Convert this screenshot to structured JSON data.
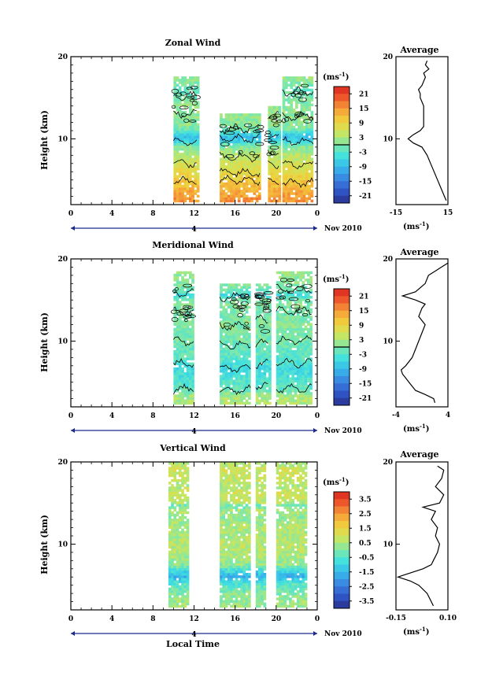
{
  "chart_data": [
    {
      "type": "heatmap",
      "title": "Zonal Wind",
      "ylabel": "Height (km)",
      "xlabel": "",
      "x_ticks": [
        "0",
        "4",
        "8",
        "12",
        "16",
        "20",
        "0"
      ],
      "xlim": [
        0,
        24
      ],
      "y_ticks": [
        "10",
        "20"
      ],
      "ylim": [
        2,
        20
      ],
      "date_label": "4",
      "date_tail": "Nov 2010",
      "data_segments": [
        [
          10,
          12.3
        ],
        [
          14.5,
          18.5
        ],
        [
          19.2,
          20.3
        ],
        [
          20.6,
          23.6
        ]
      ],
      "data_top_km": [
        17.5,
        13,
        14,
        17.5
      ],
      "profile": {
        "heights": [
          2.5,
          3,
          4,
          5,
          6,
          7,
          8,
          9,
          9.5,
          10,
          10.5,
          11,
          11.5,
          12,
          12.5,
          13,
          13.5,
          14,
          14.5,
          15,
          15.5,
          16,
          16.5,
          17,
          17.5,
          18,
          18.5,
          19,
          19.5
        ],
        "values": [
          14,
          13,
          11,
          9,
          7,
          5,
          3,
          0,
          -5,
          -8,
          -5,
          -1,
          1,
          1,
          1,
          1,
          1,
          1,
          0,
          -1,
          -1,
          -2,
          0,
          1,
          2,
          1,
          4,
          2,
          3
        ]
      },
      "colorbar": {
        "unit": "(ms",
        "unit_sup": "-1",
        "unit_close": ")",
        "ticks": [
          "21",
          "15",
          "9",
          "3",
          "-3",
          "-9",
          "-15",
          "-21"
        ],
        "range": [
          -24,
          24
        ],
        "marker": 0
      },
      "avg": {
        "title": "Average",
        "x_ticks": [
          "-15",
          "15"
        ],
        "xlim": [
          -15,
          15
        ],
        "y_ticks": [
          "10",
          "20"
        ],
        "xlabel": "(ms",
        "xlabel_sup": "-1",
        "xlabel_close": ")"
      }
    },
    {
      "type": "heatmap",
      "title": "Meridional Wind",
      "ylabel": "Height (km)",
      "xlabel": "",
      "x_ticks": [
        "0",
        "4",
        "8",
        "12",
        "16",
        "20",
        "0"
      ],
      "xlim": [
        0,
        24
      ],
      "y_ticks": [
        "10",
        "20"
      ],
      "ylim": [
        2,
        20
      ],
      "date_label": "4",
      "date_tail": "Nov 2010",
      "data_segments": [
        [
          10,
          12
        ],
        [
          14.5,
          17.5
        ],
        [
          18,
          19.3
        ],
        [
          20,
          23.5
        ]
      ],
      "data_top_km": [
        18.5,
        17,
        17,
        18.5
      ],
      "profile": {
        "heights": [
          2.5,
          3,
          3.5,
          4,
          5,
          5.5,
          6,
          6.5,
          7,
          8,
          9,
          10,
          11,
          12,
          13,
          14,
          14.5,
          15,
          15.5,
          16,
          17,
          18,
          18.5,
          19,
          19.5
        ],
        "values": [
          2,
          1.8,
          0.5,
          -1,
          -2,
          -2.5,
          -3,
          -3.2,
          -2.5,
          -1.5,
          -1,
          -0.5,
          0,
          0.5,
          -0.5,
          0,
          0.5,
          -1,
          -3,
          -1,
          0.5,
          1,
          2,
          3,
          4
        ]
      },
      "colorbar": {
        "unit": "(ms",
        "unit_sup": "-1",
        "unit_close": ")",
        "ticks": [
          "21",
          "15",
          "9",
          "3",
          "-3",
          "-9",
          "-15",
          "-21"
        ],
        "range": [
          -24,
          24
        ],
        "marker": 0
      },
      "avg": {
        "title": "Average",
        "x_ticks": [
          "-4",
          "4"
        ],
        "xlim": [
          -4,
          4
        ],
        "y_ticks": [
          "10",
          "20"
        ],
        "xlabel": "(ms",
        "xlabel_sup": "-1",
        "xlabel_close": ")"
      }
    },
    {
      "type": "heatmap",
      "title": "Vertical Wind",
      "ylabel": "Height (km)",
      "xlabel": "Local Time",
      "x_ticks": [
        "0",
        "4",
        "8",
        "12",
        "16",
        "20",
        "0"
      ],
      "xlim": [
        0,
        24
      ],
      "y_ticks": [
        "10",
        "20"
      ],
      "ylim": [
        2,
        20
      ],
      "date_label": "4",
      "date_tail": "Nov 2010",
      "data_segments": [
        [
          9.5,
          11.5
        ],
        [
          14.5,
          17.5
        ],
        [
          18,
          19
        ],
        [
          20,
          23
        ]
      ],
      "data_top_km": [
        20,
        20,
        20,
        20
      ],
      "profile": {
        "heights": [
          2.5,
          3,
          4,
          5,
          5.5,
          6,
          7,
          7.5,
          8,
          9,
          10,
          11,
          12,
          13,
          14,
          14.5,
          15,
          16,
          17,
          18,
          19,
          19.5
        ],
        "values": [
          0.03,
          0.02,
          0,
          -0.04,
          -0.08,
          -0.14,
          -0.02,
          0.02,
          0.03,
          0.05,
          0.06,
          0.04,
          0.05,
          0.02,
          0.04,
          -0.02,
          0.06,
          0.08,
          0.04,
          0.07,
          0.08,
          0.05
        ]
      },
      "colorbar": {
        "unit": "(ms",
        "unit_sup": "-1",
        "unit_close": ")",
        "ticks": [
          "3.5",
          "2.5",
          "1.5",
          "0.5",
          "-0.5",
          "-1.5",
          "-2.5",
          "-3.5"
        ],
        "range": [
          -4,
          4
        ],
        "marker": null
      },
      "avg": {
        "title": "Average",
        "x_ticks": [
          "-0.15",
          "0.10"
        ],
        "xlim": [
          -0.15,
          0.1
        ],
        "y_ticks": [
          "10",
          "20"
        ],
        "xlabel": "(ms",
        "xlabel_sup": "-1",
        "xlabel_close": ")"
      }
    }
  ],
  "colors": {
    "jet": [
      "#2a2f8c",
      "#2f55c7",
      "#3b82e0",
      "#36b6ea",
      "#40e0e0",
      "#7fe8a8",
      "#c8e660",
      "#f0d23c",
      "#f6a23a",
      "#ee5a2c",
      "#d8241e"
    ]
  }
}
